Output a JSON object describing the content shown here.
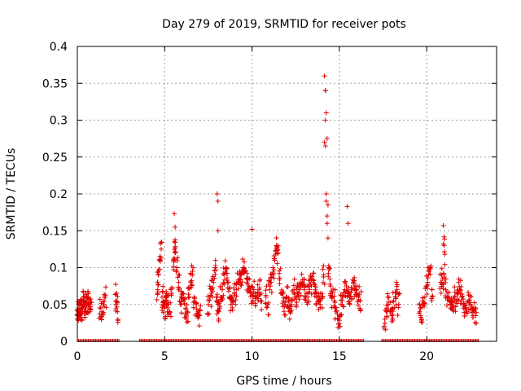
{
  "chart_data": {
    "type": "scatter",
    "title": "Day 279 of 2019, SRMTID for receiver pots",
    "xlabel": "GPS time / hours",
    "ylabel": "SRMTID / TECUs",
    "xlim": [
      0,
      24
    ],
    "ylim": [
      0,
      0.4
    ],
    "xticks": [
      0,
      5,
      10,
      15,
      20
    ],
    "yticks": [
      0,
      0.05,
      0.1,
      0.15,
      0.2,
      0.25,
      0.3,
      0.35,
      0.4
    ],
    "xtick_labels": [
      "0",
      "5",
      "10",
      "15",
      "20"
    ],
    "ytick_labels": [
      "0",
      "0.05",
      "0.1",
      "0.15",
      "0.2",
      "0.25",
      "0.3",
      "0.35",
      "0.4"
    ],
    "grid": true,
    "legend": "none",
    "marker": "plus",
    "marker_color": "#e00000",
    "series": [
      {
        "x": [
          0.0,
          0.05,
          0.1,
          0.15,
          0.2,
          0.25,
          0.3,
          0.35,
          0.4,
          0.45,
          0.5,
          0.55,
          0.6,
          0.65,
          0.7,
          0.75,
          1.3,
          1.4,
          1.5,
          1.6,
          2.2,
          2.25,
          2.3,
          4.6,
          4.65,
          4.7,
          4.8,
          4.85,
          4.9,
          5.0,
          5.05,
          5.1,
          5.2,
          5.3,
          5.4,
          5.5,
          5.55,
          5.6,
          5.7,
          5.8,
          5.9,
          6.0,
          6.1,
          6.2,
          6.3,
          6.4,
          6.5,
          6.6,
          6.7,
          6.8,
          6.9,
          7.0,
          7.5,
          7.6,
          7.7,
          7.8,
          7.9,
          8.0,
          8.05,
          8.1,
          8.2,
          8.3,
          8.4,
          8.5,
          8.6,
          8.7,
          8.8,
          8.9,
          9.0,
          9.1,
          9.2,
          9.3,
          9.4,
          9.5,
          9.6,
          9.7,
          9.8,
          9.9,
          10.0,
          10.1,
          10.2,
          10.3,
          10.4,
          10.5,
          10.8,
          10.9,
          11.0,
          11.1,
          11.2,
          11.3,
          11.4,
          11.5,
          11.6,
          11.7,
          11.8,
          11.9,
          12.0,
          12.1,
          12.2,
          12.3,
          12.4,
          12.5,
          12.6,
          12.7,
          12.8,
          12.9,
          13.0,
          13.1,
          13.2,
          13.3,
          13.4,
          13.5,
          13.6,
          13.7,
          13.8,
          13.9,
          14.0,
          14.1,
          14.15,
          14.2,
          14.25,
          14.3,
          14.35,
          14.4,
          14.5,
          14.6,
          14.7,
          14.8,
          14.9,
          15.0,
          15.1,
          15.2,
          15.3,
          15.4,
          15.5,
          15.6,
          15.7,
          15.8,
          15.9,
          16.0,
          16.1,
          16.2,
          17.6,
          17.7,
          17.8,
          17.9,
          18.0,
          18.1,
          18.2,
          18.3,
          18.4,
          19.6,
          19.7,
          19.8,
          19.9,
          20.0,
          20.1,
          20.2,
          20.3,
          20.8,
          20.9,
          21.0,
          21.1,
          21.2,
          21.3,
          21.4,
          21.5,
          21.6,
          21.7,
          21.8,
          21.9,
          22.0,
          22.1,
          22.2,
          22.3,
          22.4,
          22.5,
          22.6,
          22.7,
          22.8,
          14.15,
          14.2,
          14.25,
          14.2,
          14.3,
          14.2,
          14.35,
          14.25,
          14.3,
          8.0,
          8.05,
          8.05,
          5.55,
          5.6,
          15.45,
          15.5,
          20.95,
          21.0,
          10.0
        ],
        "y": [
          0.03,
          0.04,
          0.05,
          0.035,
          0.045,
          0.055,
          0.04,
          0.06,
          0.05,
          0.045,
          0.055,
          0.05,
          0.06,
          0.05,
          0.045,
          0.05,
          0.045,
          0.04,
          0.05,
          0.06,
          0.05,
          0.065,
          0.04,
          0.07,
          0.09,
          0.11,
          0.125,
          0.06,
          0.05,
          0.045,
          0.06,
          0.055,
          0.05,
          0.04,
          0.065,
          0.11,
          0.135,
          0.12,
          0.1,
          0.08,
          0.05,
          0.065,
          0.055,
          0.045,
          0.04,
          0.06,
          0.08,
          0.09,
          0.06,
          0.05,
          0.04,
          0.035,
          0.05,
          0.06,
          0.07,
          0.08,
          0.1,
          0.06,
          0.05,
          0.04,
          0.06,
          0.07,
          0.09,
          0.1,
          0.08,
          0.06,
          0.05,
          0.055,
          0.065,
          0.07,
          0.08,
          0.085,
          0.09,
          0.1,
          0.095,
          0.08,
          0.075,
          0.07,
          0.065,
          0.07,
          0.06,
          0.065,
          0.07,
          0.055,
          0.06,
          0.05,
          0.07,
          0.08,
          0.1,
          0.11,
          0.13,
          0.12,
          0.085,
          0.065,
          0.055,
          0.05,
          0.06,
          0.045,
          0.04,
          0.055,
          0.07,
          0.06,
          0.065,
          0.07,
          0.075,
          0.08,
          0.07,
          0.065,
          0.06,
          0.07,
          0.075,
          0.08,
          0.065,
          0.06,
          0.055,
          0.05,
          0.06,
          0.09,
          0.27,
          0.34,
          0.2,
          0.16,
          0.14,
          0.1,
          0.075,
          0.06,
          0.055,
          0.04,
          0.03,
          0.035,
          0.05,
          0.06,
          0.07,
          0.075,
          0.065,
          0.06,
          0.07,
          0.08,
          0.075,
          0.065,
          0.06,
          0.055,
          0.03,
          0.045,
          0.05,
          0.04,
          0.035,
          0.055,
          0.06,
          0.07,
          0.05,
          0.04,
          0.03,
          0.05,
          0.06,
          0.075,
          0.09,
          0.1,
          0.07,
          0.08,
          0.085,
          0.09,
          0.07,
          0.06,
          0.055,
          0.05,
          0.045,
          0.06,
          0.055,
          0.065,
          0.07,
          0.06,
          0.05,
          0.045,
          0.04,
          0.055,
          0.05,
          0.045,
          0.04,
          0.035,
          0.36,
          0.34,
          0.31,
          0.3,
          0.275,
          0.265,
          0.185,
          0.19,
          0.17,
          0.2,
          0.19,
          0.15,
          0.173,
          0.155,
          0.183,
          0.16,
          0.157,
          0.13,
          0.152
        ]
      }
    ]
  }
}
